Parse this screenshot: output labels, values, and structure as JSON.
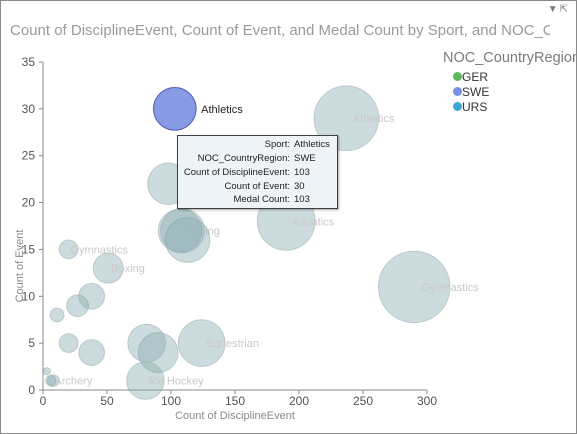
{
  "visual": {
    "title": "Count of DisciplineEvent, Count of Event, and Medal Count by Sport, and NOC_CountryRegion",
    "corner_icons": [
      "filter-icon",
      "expand-icon"
    ]
  },
  "legend": {
    "title": "NOC_CountryRegion",
    "items": [
      {
        "label": "GER",
        "color": "#5cb85c"
      },
      {
        "label": "SWE",
        "color": "#7b8fe0"
      },
      {
        "label": "URS",
        "color": "#3ba7d3"
      }
    ]
  },
  "tooltip": {
    "rows": [
      {
        "key": "Sport:",
        "value": "Athletics"
      },
      {
        "key": "NOC_CountryRegion:",
        "value": "SWE"
      },
      {
        "key": "Count of DisciplineEvent:",
        "value": "103"
      },
      {
        "key": "Count of Event:",
        "value": "30"
      },
      {
        "key": "Medal Count:",
        "value": "103"
      }
    ]
  },
  "chart_data": {
    "type": "scatter",
    "title": "Count of DisciplineEvent, Count of Event, and Medal Count by Sport, and NOC_CountryRegion",
    "xlabel": "Count of DisciplineEvent",
    "ylabel": "Count of Event",
    "xlim": [
      0,
      300
    ],
    "ylim": [
      0,
      35
    ],
    "xticks": [
      0,
      50,
      100,
      150,
      200,
      250,
      300
    ],
    "yticks": [
      0,
      5,
      10,
      15,
      20,
      25,
      30,
      35
    ],
    "grid": false,
    "legend_position": "right",
    "size_field": "Medal Count",
    "colors": {
      "GER": "#5cb85c",
      "SWE": "#7b8fe0",
      "URS": "#3ba7d3",
      "faded": "#8fb0b4"
    },
    "points": [
      {
        "sport": "Athletics",
        "country": "SWE",
        "x": 103,
        "y": 30,
        "size": 103,
        "highlighted": true,
        "label": "Athletics"
      },
      {
        "sport": "Athletics",
        "x": 237,
        "y": 29,
        "size": 237,
        "label": "Athletics"
      },
      {
        "sport": "Aquatics",
        "x": 190,
        "y": 18,
        "size": 190,
        "label": "Aquatics"
      },
      {
        "sport": "Gymnastics",
        "x": 290,
        "y": 11,
        "size": 290,
        "label": "Gymnastics"
      },
      {
        "sport": "Sailing",
        "x": 109,
        "y": 17,
        "size": 109,
        "label": "Sailing"
      },
      {
        "sport": "Boxing",
        "x": 51,
        "y": 13,
        "size": 51,
        "label": "Boxing"
      },
      {
        "sport": "Gymnastics",
        "x": 20,
        "y": 15,
        "size": 20,
        "label": "Gymnastics"
      },
      {
        "sport": "Equestrian",
        "x": 124,
        "y": 5,
        "size": 124,
        "label": "Equestrian"
      },
      {
        "sport": "Ice Hockey",
        "x": 80,
        "y": 1,
        "size": 80,
        "label": "Ice Hockey"
      },
      {
        "sport": "Archery",
        "x": 8,
        "y": 1,
        "size": 8,
        "label": "Archery"
      },
      {
        "x": 98,
        "y": 22,
        "size": 98
      },
      {
        "x": 107,
        "y": 17,
        "size": 107
      },
      {
        "x": 113,
        "y": 16,
        "size": 113
      },
      {
        "x": 38,
        "y": 10,
        "size": 38
      },
      {
        "x": 27,
        "y": 9,
        "size": 27
      },
      {
        "x": 11,
        "y": 8,
        "size": 11
      },
      {
        "x": 20,
        "y": 5,
        "size": 20
      },
      {
        "x": 38,
        "y": 4,
        "size": 38
      },
      {
        "x": 81,
        "y": 5,
        "size": 81
      },
      {
        "x": 90,
        "y": 4,
        "size": 90
      },
      {
        "x": 3,
        "y": 2,
        "size": 3
      },
      {
        "x": 6,
        "y": 1,
        "size": 6
      }
    ]
  }
}
